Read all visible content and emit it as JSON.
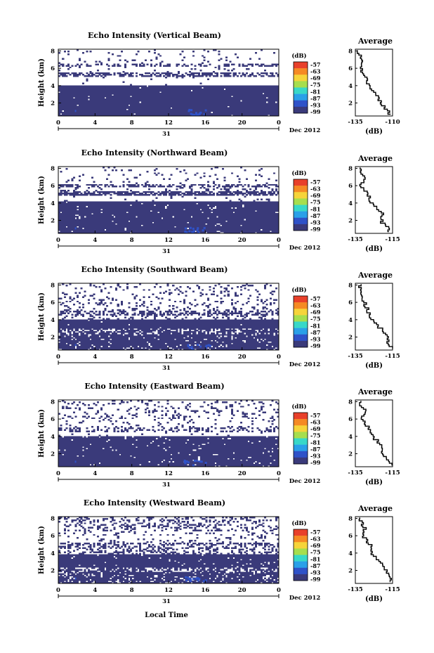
{
  "figure": {
    "panels": [
      {
        "title": "Echo Intensity (Vertical Beam)",
        "avg_title": "Average",
        "avg_xticks": [
          "-135",
          "-110"
        ],
        "avg_bursts": [
          0.55
        ]
      },
      {
        "title": "Echo Intensity (Northward Beam)",
        "avg_title": "Average",
        "avg_xticks": [
          "-135",
          "-115"
        ],
        "avg_bursts": [
          0.52
        ]
      },
      {
        "title": "Echo Intensity (Southward Beam)",
        "avg_title": "Average",
        "avg_xticks": [
          "-135",
          "-115"
        ],
        "avg_bursts": [
          0.58
        ]
      },
      {
        "title": "Echo Intensity (Eastward Beam)",
        "avg_title": "Average",
        "avg_xticks": [
          "-135",
          "-115"
        ],
        "avg_bursts": [
          0.6,
          0.62
        ]
      },
      {
        "title": "Echo Intensity (Westward Beam)",
        "avg_title": "Average",
        "avg_xticks": [
          "-135",
          "-115"
        ],
        "avg_bursts": [
          0.62,
          0.65
        ]
      }
    ],
    "ylabel": "Height (km)",
    "yticks": [
      "2",
      "4",
      "6",
      "8"
    ],
    "xticks": [
      "0",
      "4",
      "8",
      "12",
      "16",
      "20",
      "0"
    ],
    "date_day": "31",
    "date_label": "Dec 2012",
    "avg_yticks": [
      "2",
      "4",
      "6",
      "8"
    ],
    "avg_xlabel": "(dB)",
    "colorbar_unit": "(dB)",
    "colorbar_ticks": [
      "-57",
      "-63",
      "-69",
      "-75",
      "-81",
      "-87",
      "-93",
      "-99"
    ],
    "colors": [
      "#e8402a",
      "#f58a24",
      "#f6d43a",
      "#a6de4e",
      "#38d8c8",
      "#2aa0e8",
      "#2f52c8",
      "#3a3a7a"
    ],
    "bottom_xlabel": "Local Time"
  },
  "chart_data": [
    {
      "type": "heatmap",
      "title": "Echo Intensity (Vertical Beam)",
      "ylabel": "Height (km)",
      "x_unit": "Local Time (h), 31 Dec 2012",
      "xlim": [
        0,
        24
      ],
      "ylim": [
        0.5,
        8.2
      ],
      "colorbar": {
        "unit": "dB",
        "range": [
          -99,
          -57
        ]
      },
      "layers": [
        {
          "ymin": 0.5,
          "ymax": 4.0,
          "coverage": 0.99
        },
        {
          "ymin": 4.0,
          "ymax": 5.0,
          "coverage": 0.02
        },
        {
          "ymin": 5.0,
          "ymax": 5.5,
          "coverage": 0.6
        },
        {
          "ymin": 5.5,
          "ymax": 6.2,
          "coverage": 0.05
        },
        {
          "ymin": 6.2,
          "ymax": 6.6,
          "coverage": 0.4
        },
        {
          "ymin": 6.6,
          "ymax": 8.2,
          "coverage": 0.06
        }
      ],
      "strong_echo": {
        "x": [
          14,
          16
        ],
        "y": [
          0.7,
          1.6
        ],
        "max_dB": -87
      },
      "average_profile": {
        "x_label": "(dB)",
        "xlim": [
          -135,
          -110
        ],
        "height": [
          1,
          2,
          3,
          4,
          5,
          6,
          7,
          8
        ],
        "dB": [
          -112,
          -118,
          -120,
          -126,
          -128,
          -131,
          -130,
          -133
        ]
      }
    },
    {
      "type": "heatmap",
      "title": "Echo Intensity (Northward Beam)",
      "ylabel": "Height (km)",
      "x_unit": "Local Time (h), 31 Dec 2012",
      "xlim": [
        0,
        24
      ],
      "ylim": [
        0.5,
        8.2
      ],
      "colorbar": {
        "unit": "dB",
        "range": [
          -99,
          -57
        ]
      },
      "layers": [
        {
          "ymin": 0.5,
          "ymax": 4.1,
          "coverage": 0.97
        },
        {
          "ymin": 4.1,
          "ymax": 4.8,
          "coverage": 0.05
        },
        {
          "ymin": 4.8,
          "ymax": 5.3,
          "coverage": 0.7
        },
        {
          "ymin": 5.3,
          "ymax": 5.8,
          "coverage": 0.15
        },
        {
          "ymin": 5.8,
          "ymax": 6.2,
          "coverage": 0.55
        },
        {
          "ymin": 6.2,
          "ymax": 8.2,
          "coverage": 0.06
        }
      ],
      "strong_echo": {
        "x": [
          13.5,
          16
        ],
        "y": [
          0.7,
          1.5
        ],
        "max_dB": -87
      },
      "average_profile": {
        "x_label": "(dB)",
        "xlim": [
          -135,
          -115
        ],
        "height": [
          1,
          2,
          3,
          4,
          5,
          6,
          7,
          8
        ],
        "dB": [
          -117,
          -121,
          -120,
          -126,
          -128,
          -132,
          -130,
          -133
        ]
      }
    },
    {
      "type": "heatmap",
      "title": "Echo Intensity (Southward Beam)",
      "ylabel": "Height (km)",
      "x_unit": "Local Time (h), 31 Dec 2012",
      "xlim": [
        0,
        24
      ],
      "ylim": [
        0.5,
        8.2
      ],
      "colorbar": {
        "unit": "dB",
        "range": [
          -99,
          -57
        ]
      },
      "layers": [
        {
          "ymin": 0.5,
          "ymax": 2.3,
          "coverage": 0.9
        },
        {
          "ymin": 2.3,
          "ymax": 3.0,
          "coverage": 0.7
        },
        {
          "ymin": 3.0,
          "ymax": 4.0,
          "coverage": 0.99
        },
        {
          "ymin": 4.0,
          "ymax": 4.6,
          "coverage": 0.2
        },
        {
          "ymin": 4.6,
          "ymax": 5.1,
          "coverage": 0.5
        },
        {
          "ymin": 5.1,
          "ymax": 6.3,
          "coverage": 0.15
        },
        {
          "ymin": 6.3,
          "ymax": 8.2,
          "coverage": 0.12
        }
      ],
      "strong_echo": {
        "x": [
          14,
          16.5
        ],
        "y": [
          0.7,
          1.6
        ],
        "max_dB": -87
      },
      "average_profile": {
        "x_label": "(dB)",
        "xlim": [
          -135,
          -115
        ],
        "height": [
          1,
          2,
          3,
          4,
          5,
          6,
          7,
          8
        ],
        "dB": [
          -116,
          -118,
          -121,
          -126,
          -128,
          -130,
          -132,
          -133
        ]
      }
    },
    {
      "type": "heatmap",
      "title": "Echo Intensity (Eastward Beam)",
      "ylabel": "Height (km)",
      "x_unit": "Local Time (h), 31 Dec 2012",
      "xlim": [
        0,
        24
      ],
      "ylim": [
        0.5,
        8.2
      ],
      "colorbar": {
        "unit": "dB",
        "range": [
          -99,
          -57
        ]
      },
      "layers": [
        {
          "ymin": 0.5,
          "ymax": 4.0,
          "coverage": 0.95
        },
        {
          "ymin": 4.0,
          "ymax": 4.5,
          "coverage": 0.02
        },
        {
          "ymin": 4.5,
          "ymax": 5.0,
          "coverage": 0.35
        },
        {
          "ymin": 5.0,
          "ymax": 6.0,
          "coverage": 0.08
        },
        {
          "ymin": 6.0,
          "ymax": 8.2,
          "coverage": 0.15
        }
      ],
      "strong_echo": {
        "x": [
          13.5,
          16
        ],
        "y": [
          0.7,
          1.6
        ],
        "max_dB": -81
      },
      "average_profile": {
        "x_label": "(dB)",
        "xlim": [
          -135,
          -115
        ],
        "height": [
          1,
          2,
          3,
          4,
          5,
          6,
          7,
          8
        ],
        "dB": [
          -116,
          -120,
          -121,
          -125,
          -128,
          -131,
          -130,
          -133
        ]
      }
    },
    {
      "type": "heatmap",
      "title": "Echo Intensity (Westward Beam)",
      "ylabel": "Height (km)",
      "x_unit": "Local Time (h), 31 Dec 2012",
      "xlim": [
        0,
        24
      ],
      "ylim": [
        0.5,
        8.2
      ],
      "colorbar": {
        "unit": "dB",
        "range": [
          -99,
          -57
        ]
      },
      "layers": [
        {
          "ymin": 0.5,
          "ymax": 1.8,
          "coverage": 0.85
        },
        {
          "ymin": 1.8,
          "ymax": 2.3,
          "coverage": 0.6
        },
        {
          "ymin": 2.3,
          "ymax": 3.9,
          "coverage": 0.97
        },
        {
          "ymin": 3.9,
          "ymax": 4.5,
          "coverage": 0.3
        },
        {
          "ymin": 4.5,
          "ymax": 5.2,
          "coverage": 0.4
        },
        {
          "ymin": 5.2,
          "ymax": 6.5,
          "coverage": 0.1
        },
        {
          "ymin": 6.5,
          "ymax": 8.2,
          "coverage": 0.25
        }
      ],
      "strong_echo": {
        "x": [
          13.5,
          16
        ],
        "y": [
          0.7,
          1.6
        ],
        "max_dB": -87
      },
      "average_profile": {
        "x_label": "(dB)",
        "xlim": [
          -135,
          -115
        ],
        "height": [
          1,
          2,
          3,
          4,
          5,
          6,
          7,
          8
        ],
        "dB": [
          -116,
          -118,
          -121,
          -126,
          -127,
          -131,
          -130,
          -133
        ]
      }
    }
  ]
}
